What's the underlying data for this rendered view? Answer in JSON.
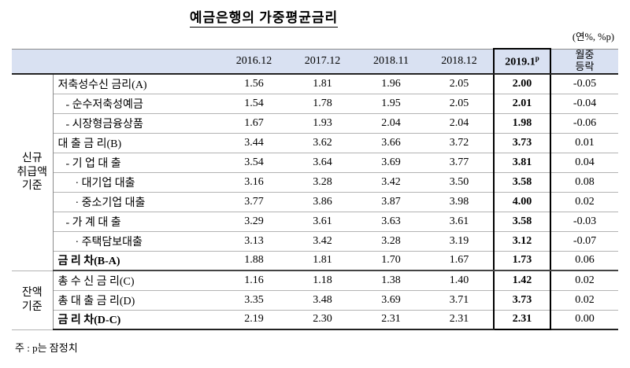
{
  "page": {
    "title": "예금은행의 가중평균금리",
    "unit_note": "(연%, %p)",
    "footnote": "주 : p는 잠정치"
  },
  "table": {
    "year_headers": [
      "2016.12",
      "2017.12",
      "2018.11",
      "2018.12"
    ],
    "highlight_header": {
      "text": "2019.1",
      "sup": "p"
    },
    "change_header_line1": "월중",
    "change_header_line2": "등락",
    "highlight_col_index": 4,
    "colors": {
      "header_bg": "#d9e1f2",
      "highlight_border": "#000000"
    },
    "groups": [
      {
        "label": "신규취급액기준",
        "lines": [
          "신규",
          "취급액",
          "기준"
        ],
        "rowspan": 10
      },
      {
        "label": "잔액기준",
        "lines": [
          "잔액",
          "기준"
        ],
        "rowspan": 3
      }
    ],
    "rows": [
      {
        "label": "저축성수신 금리(A)",
        "indent": 0,
        "bold": false,
        "values": [
          "1.56",
          "1.81",
          "1.96",
          "2.05",
          "2.00",
          "-0.05"
        ]
      },
      {
        "label": "- 순수저축성예금",
        "indent": 1,
        "bold": false,
        "values": [
          "1.54",
          "1.78",
          "1.95",
          "2.05",
          "2.01",
          "-0.04"
        ]
      },
      {
        "label": "- 시장형금융상품",
        "indent": 1,
        "bold": false,
        "values": [
          "1.67",
          "1.93",
          "2.04",
          "2.04",
          "1.98",
          "-0.06"
        ]
      },
      {
        "label": "대 출 금 리(B)",
        "indent": 0,
        "bold": false,
        "values": [
          "3.44",
          "3.62",
          "3.66",
          "3.72",
          "3.73",
          "0.01"
        ]
      },
      {
        "label": "- 기 업 대 출",
        "indent": 1,
        "bold": false,
        "values": [
          "3.54",
          "3.64",
          "3.69",
          "3.77",
          "3.81",
          "0.04"
        ]
      },
      {
        "label": "· 대기업 대출",
        "indent": 2,
        "bold": false,
        "values": [
          "3.16",
          "3.28",
          "3.42",
          "3.50",
          "3.58",
          "0.08"
        ]
      },
      {
        "label": "· 중소기업 대출",
        "indent": 2,
        "bold": false,
        "values": [
          "3.77",
          "3.86",
          "3.87",
          "3.98",
          "4.00",
          "0.02"
        ]
      },
      {
        "label": "- 가 계 대 출",
        "indent": 1,
        "bold": false,
        "values": [
          "3.29",
          "3.61",
          "3.63",
          "3.61",
          "3.58",
          "-0.03"
        ]
      },
      {
        "label": "· 주택담보대출",
        "indent": 2,
        "bold": false,
        "values": [
          "3.13",
          "3.42",
          "3.28",
          "3.19",
          "3.12",
          "-0.07"
        ]
      },
      {
        "label": "금 리 차(B-A)",
        "indent": 0,
        "bold": true,
        "values": [
          "1.88",
          "1.81",
          "1.70",
          "1.67",
          "1.73",
          "0.06"
        ]
      },
      {
        "label": "총 수 신 금 리(C)",
        "indent": 0,
        "bold": false,
        "values": [
          "1.16",
          "1.18",
          "1.38",
          "1.40",
          "1.42",
          "0.02"
        ]
      },
      {
        "label": "총 대 출 금 리(D)",
        "indent": 0,
        "bold": false,
        "values": [
          "3.35",
          "3.48",
          "3.69",
          "3.71",
          "3.73",
          "0.02"
        ]
      },
      {
        "label": "금 리 차(D-C)",
        "indent": 0,
        "bold": true,
        "values": [
          "2.19",
          "2.30",
          "2.31",
          "2.31",
          "2.31",
          "0.00"
        ]
      }
    ]
  }
}
